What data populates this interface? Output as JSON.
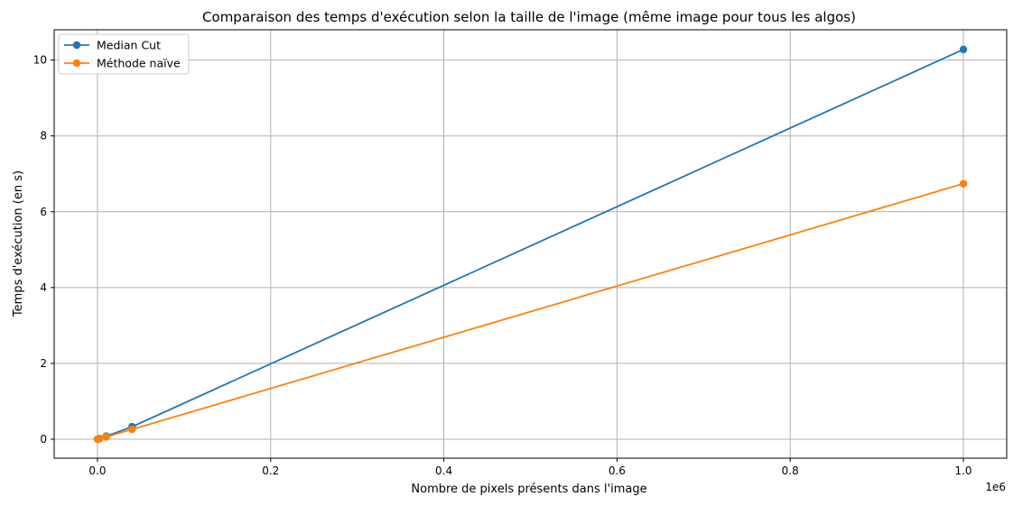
{
  "chart_data": {
    "type": "line",
    "title": "Comparaison des temps d'exécution selon la taille de l'image (même image pour tous les algos)",
    "xlabel": "Nombre de pixels présents dans l'image",
    "ylabel": "Temps d'exécution (en s)",
    "x_offset_label": "1e6",
    "xlim": [
      -50000,
      1050000
    ],
    "ylim": [
      -0.5,
      10.8
    ],
    "xticks": [
      0,
      200000,
      400000,
      600000,
      800000,
      1000000
    ],
    "xtick_labels": [
      "0.0",
      "0.2",
      "0.4",
      "0.6",
      "0.8",
      "1.0"
    ],
    "yticks": [
      0,
      2,
      4,
      6,
      8,
      10
    ],
    "ytick_labels": [
      "0",
      "2",
      "4",
      "6",
      "8",
      "10"
    ],
    "grid": true,
    "legend": "top-left",
    "series": [
      {
        "name": "Median Cut",
        "color": "#1f77b4",
        "x": [
          100,
          2500,
          10000,
          40000,
          1000000
        ],
        "y": [
          0.002,
          0.02,
          0.08,
          0.33,
          10.28
        ]
      },
      {
        "name": "Méthode naïve",
        "color": "#ff7f0e",
        "x": [
          100,
          2500,
          10000,
          40000,
          1000000
        ],
        "y": [
          0.001,
          0.015,
          0.06,
          0.26,
          6.74
        ]
      }
    ]
  }
}
